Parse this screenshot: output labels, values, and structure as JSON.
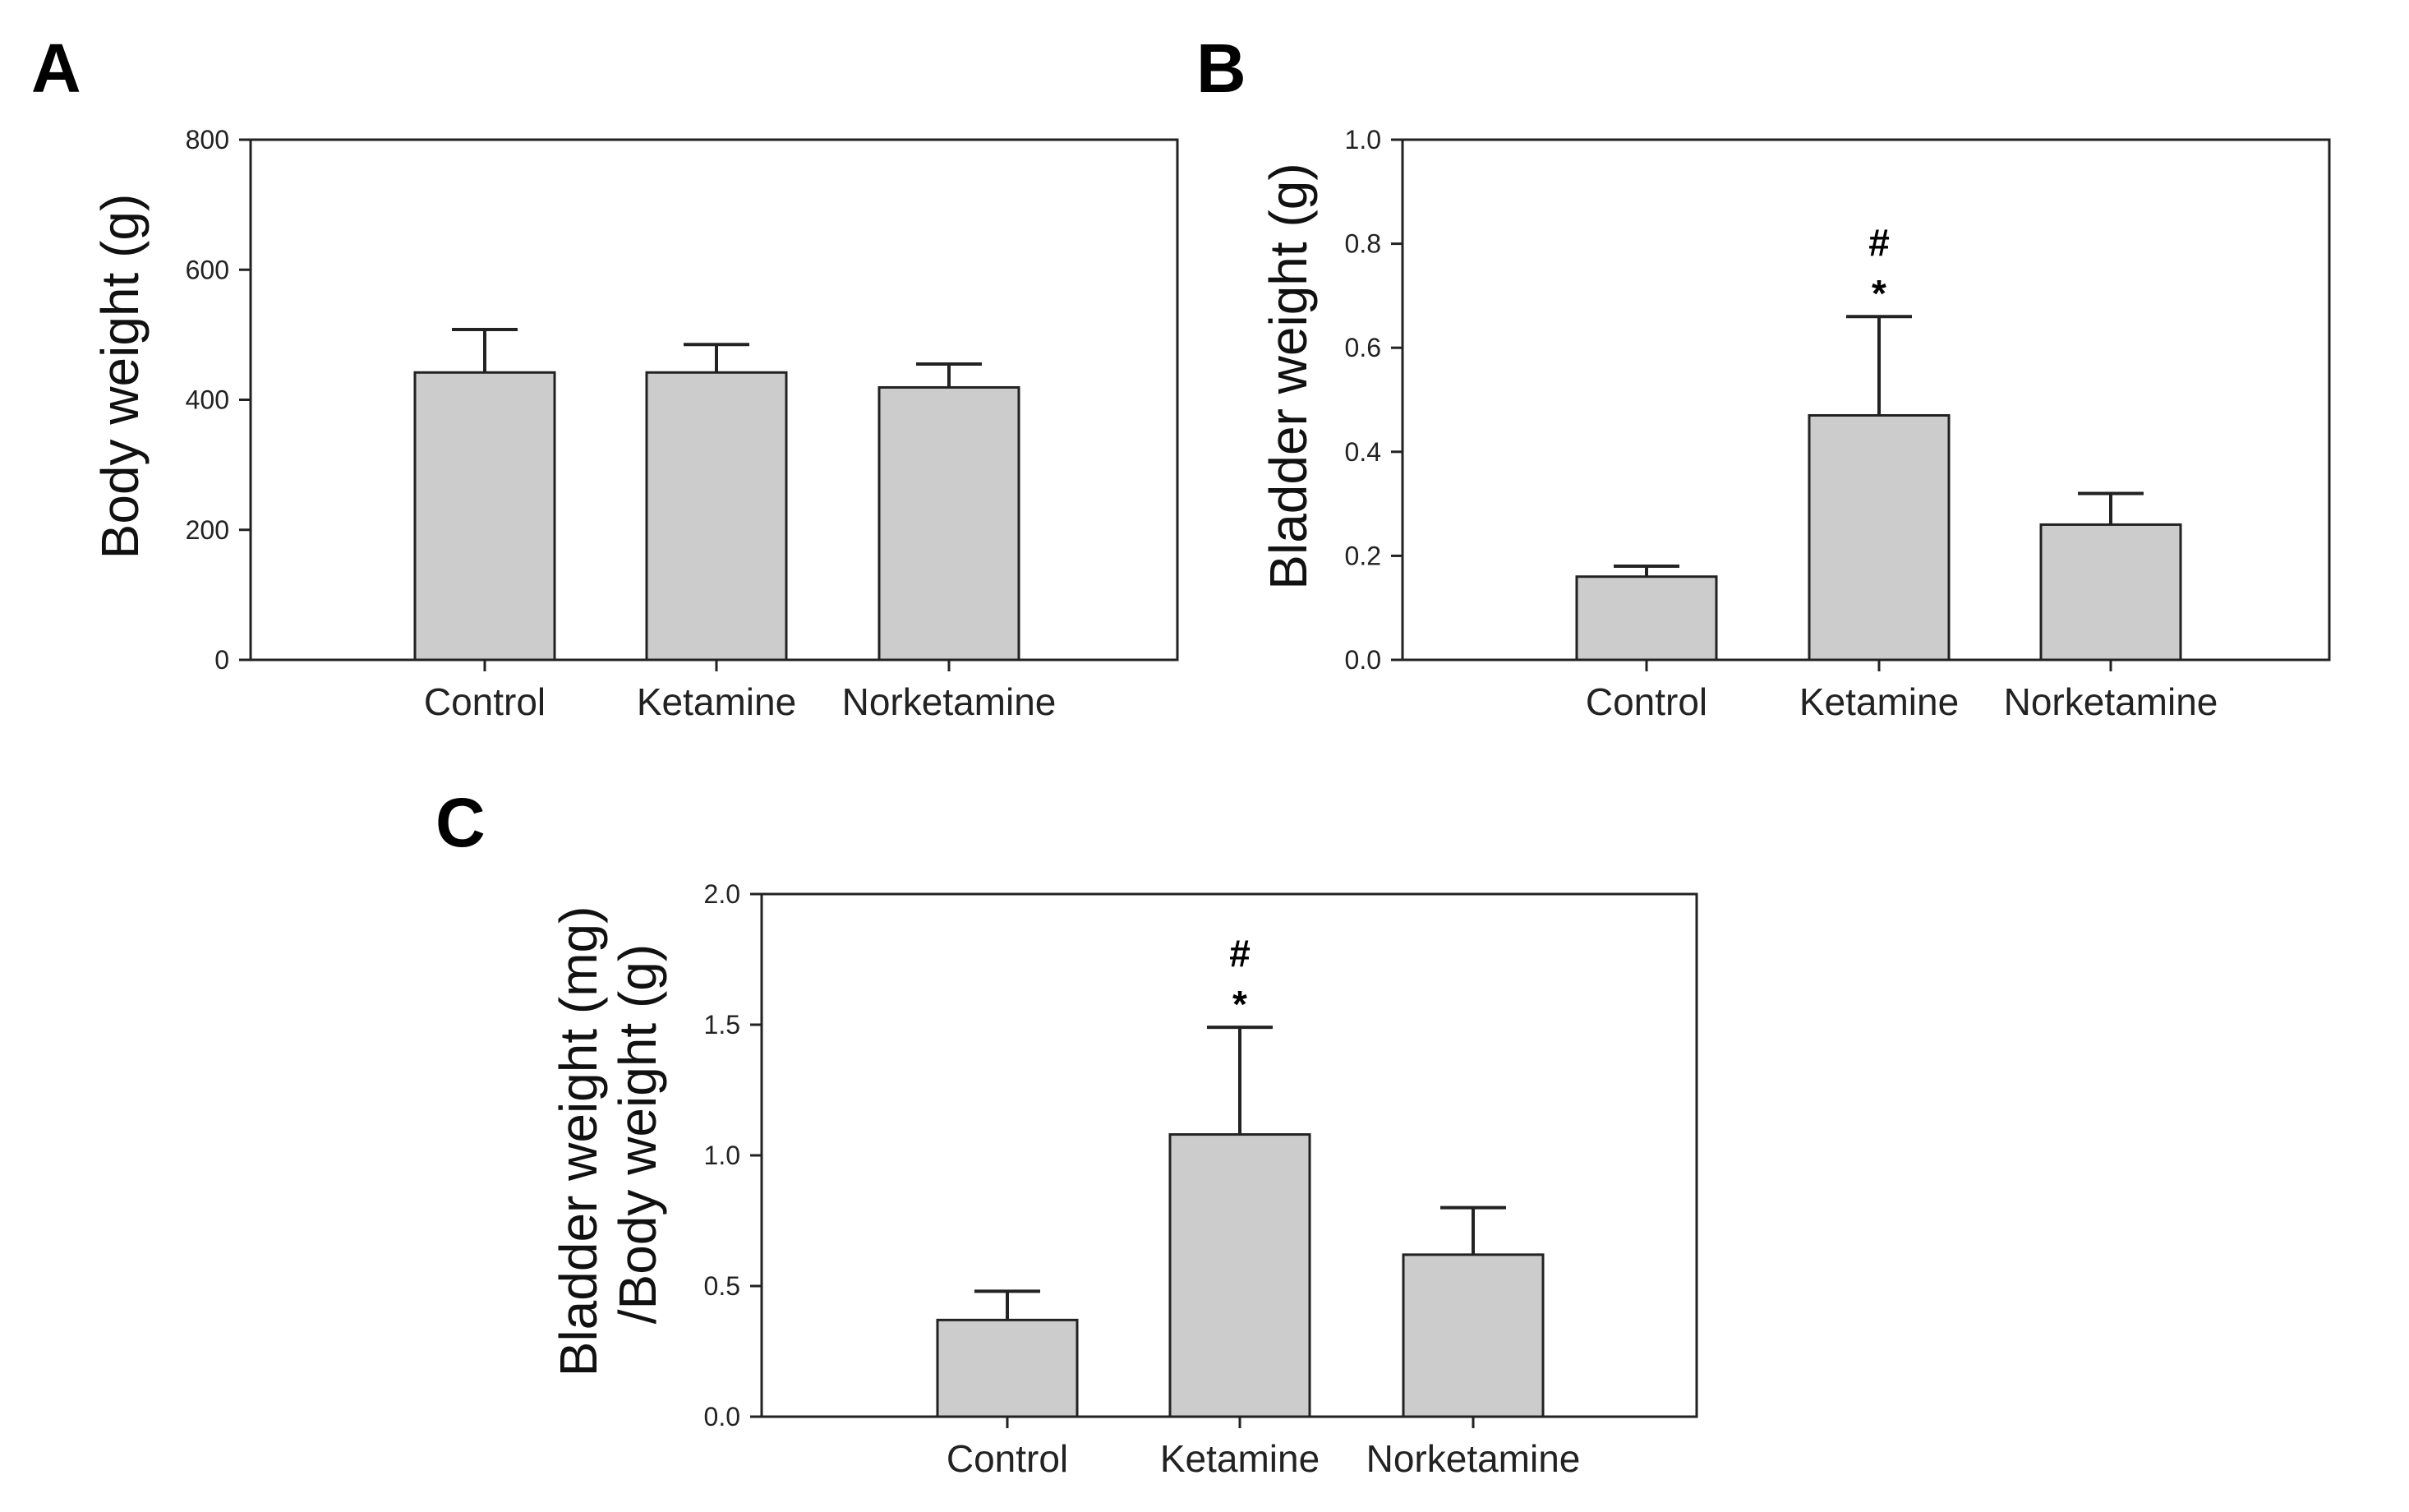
{
  "chart_data": [
    {
      "panel": "A",
      "type": "bar",
      "categories": [
        "Control",
        "Ketamine",
        "Norketamine"
      ],
      "values": [
        442,
        442,
        419
      ],
      "errors": [
        66,
        43,
        36
      ],
      "ylabel": [
        "Body weight (g)"
      ],
      "ylim": [
        0,
        800
      ],
      "yticks": [
        0,
        200,
        400,
        600,
        800
      ],
      "ytick_labels": [
        "0",
        "200",
        "400",
        "600",
        "800"
      ],
      "annotations": [],
      "colors": {
        "bar": "#cccccc",
        "edge": "#222222"
      }
    },
    {
      "panel": "B",
      "type": "bar",
      "categories": [
        "Control",
        "Ketamine",
        "Norketamine"
      ],
      "values": [
        0.16,
        0.47,
        0.26
      ],
      "errors": [
        0.02,
        0.19,
        0.06
      ],
      "ylabel": [
        "Bladder weight (g)"
      ],
      "ylim": [
        0,
        1.0
      ],
      "yticks": [
        0,
        0.2,
        0.4,
        0.6,
        0.8,
        1.0
      ],
      "ytick_labels": [
        "0.0",
        "0.2",
        "0.4",
        "0.6",
        "0.8",
        "1.0"
      ],
      "annotations": [
        {
          "category_index": 1,
          "marks": [
            "#",
            "*"
          ]
        }
      ],
      "colors": {
        "bar": "#cccccc",
        "edge": "#222222"
      }
    },
    {
      "panel": "C",
      "type": "bar",
      "categories": [
        "Control",
        "Ketamine",
        "Norketamine"
      ],
      "values": [
        0.37,
        1.08,
        0.62
      ],
      "errors": [
        0.11,
        0.41,
        0.18
      ],
      "ylabel": [
        "Bladder weight (mg)",
        "/Body weight (g)"
      ],
      "ylim": [
        0,
        2.0
      ],
      "yticks": [
        0,
        0.5,
        1.0,
        1.5,
        2.0
      ],
      "ytick_labels": [
        "0.0",
        "0.5",
        "1.0",
        "1.5",
        "2.0"
      ],
      "annotations": [
        {
          "category_index": 1,
          "marks": [
            "#",
            "*"
          ]
        }
      ],
      "colors": {
        "bar": "#cccccc",
        "edge": "#222222"
      }
    }
  ]
}
